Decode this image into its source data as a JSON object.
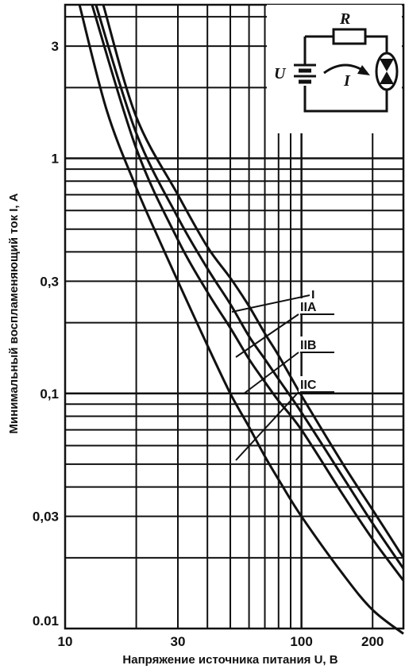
{
  "chart_data": {
    "type": "line",
    "xlabel": "Напряжение источника питания U, В",
    "ylabel": "Минимальный воспламеняющий ток I, А",
    "x_scale": "log",
    "y_scale": "log",
    "xlim": [
      10,
      270
    ],
    "ylim": [
      0.01,
      4.5
    ],
    "grid": true,
    "x_ticks": [
      {
        "value": 10,
        "label": "10"
      },
      {
        "value": 30,
        "label": "30"
      },
      {
        "value": 100,
        "label": "100"
      },
      {
        "value": 200,
        "label": "200"
      }
    ],
    "y_ticks": [
      {
        "value": 0.01,
        "label": "0.01"
      },
      {
        "value": 0.03,
        "label": "0,03"
      },
      {
        "value": 0.1,
        "label": "0,1"
      },
      {
        "value": 0.3,
        "label": "0,3"
      },
      {
        "value": 1,
        "label": "1"
      },
      {
        "value": 3,
        "label": "3"
      }
    ],
    "series": [
      {
        "name": "I",
        "x": [
          14.5,
          20,
          30,
          40,
          50,
          60,
          70,
          80,
          100,
          150,
          200,
          270
        ],
        "y": [
          4.5,
          1.5,
          0.7,
          0.42,
          0.31,
          0.235,
          0.18,
          0.145,
          0.098,
          0.05,
          0.032,
          0.02
        ]
      },
      {
        "name": "IIA",
        "x": [
          13.5,
          20,
          30,
          40,
          50,
          60,
          70,
          80,
          100,
          150,
          200,
          270
        ],
        "y": [
          4.5,
          1.28,
          0.56,
          0.34,
          0.24,
          0.175,
          0.14,
          0.115,
          0.083,
          0.044,
          0.028,
          0.018
        ]
      },
      {
        "name": "IIB",
        "x": [
          13,
          20,
          30,
          40,
          50,
          60,
          70,
          80,
          100,
          150,
          200,
          270
        ],
        "y": [
          4.5,
          1.1,
          0.45,
          0.27,
          0.19,
          0.14,
          0.112,
          0.093,
          0.07,
          0.037,
          0.024,
          0.016
        ]
      },
      {
        "name": "IIC",
        "x": [
          11.5,
          15,
          20,
          25,
          30,
          40,
          50,
          60,
          70,
          80,
          100,
          150,
          200,
          270
        ],
        "y": [
          4.5,
          1.6,
          0.75,
          0.45,
          0.3,
          0.16,
          0.1,
          0.072,
          0.054,
          0.043,
          0.03,
          0.017,
          0.012,
          0.0095
        ]
      }
    ]
  },
  "inset": {
    "labels": {
      "resistor": "R",
      "source": "U",
      "current": "I"
    }
  }
}
